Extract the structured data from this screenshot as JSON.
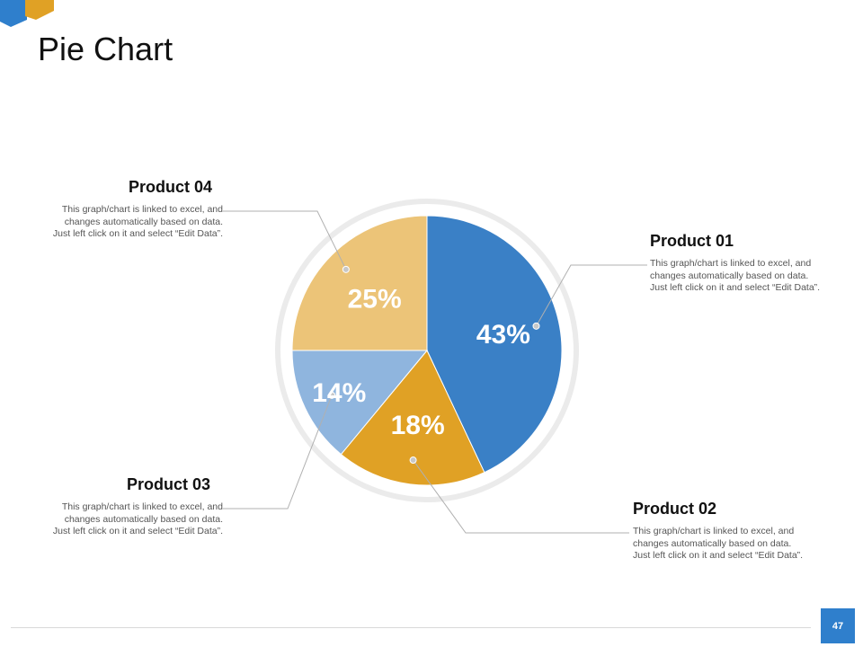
{
  "header": {
    "title": "Pie Chart"
  },
  "footer": {
    "page_number": "47"
  },
  "colors": {
    "product01": "#3a80c6",
    "product02": "#e0a125",
    "product03": "#8fb5de",
    "product04": "#ecc478",
    "ring": "#ebebeb",
    "leader": "#b0b0b0"
  },
  "chart_data": {
    "type": "pie",
    "title": "Pie Chart",
    "start_angle": "12 o'clock, clockwise",
    "slices": [
      {
        "name": "Product 01",
        "value": 43,
        "label": "43%"
      },
      {
        "name": "Product 02",
        "value": 18,
        "label": "18%"
      },
      {
        "name": "Product 03",
        "value": 14,
        "label": "14%"
      },
      {
        "name": "Product 04",
        "value": 25,
        "label": "25%"
      }
    ]
  },
  "labels": {
    "product01": {
      "title": "Product 01",
      "desc": [
        "This graph/chart is linked to excel, and",
        "changes automatically based on data.",
        "Just left click on it and select “Edit Data”."
      ]
    },
    "product02": {
      "title": "Product 02",
      "desc": [
        "This graph/chart is linked to excel, and",
        "changes automatically based on data.",
        "Just left click on it and select “Edit Data”."
      ]
    },
    "product03": {
      "title": "Product 03",
      "desc": [
        "This graph/chart is linked to excel, and",
        "changes automatically based on data.",
        "Just left click on it and select “Edit Data”."
      ]
    },
    "product04": {
      "title": "Product 04",
      "desc": [
        "This graph/chart is linked to excel, and",
        "changes automatically based on data.",
        "Just left click on it and select “Edit Data”."
      ]
    }
  }
}
